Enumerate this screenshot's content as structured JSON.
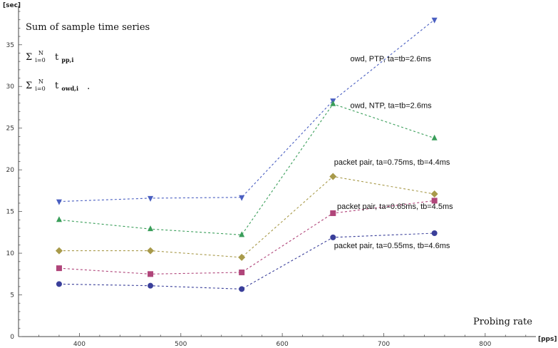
{
  "chart_data": {
    "type": "line",
    "title_lines": [
      "Sum of sample time series"
    ],
    "formula_1": {
      "sigma": "Σ",
      "sub": "i=0",
      "sup": "N",
      "term": "t",
      "term_sub": "pp,i"
    },
    "formula_2": {
      "sigma": "Σ",
      "sub": "i=0",
      "sup": "N",
      "term": "t",
      "term_sub": "owd,i"
    },
    "formula_2_suffix": ".",
    "ylabel": "[sec]",
    "xlabel_unit": "[pps]",
    "xlabel_text": "Probing rate",
    "xlim": [
      340,
      850
    ],
    "ylim": [
      0,
      39
    ],
    "xticks": [
      400,
      500,
      600,
      700,
      800
    ],
    "yticks": [
      0,
      5,
      10,
      15,
      20,
      25,
      30,
      35
    ],
    "x": [
      380,
      470,
      560,
      650,
      750
    ],
    "series": [
      {
        "name": "owd, PTP, ta=tb=2.6ms",
        "values": [
          16.2,
          16.6,
          16.7,
          28.3,
          38.0
        ],
        "color": "#4a5fc1",
        "marker": "triangle-down"
      },
      {
        "name": "owd, NTP, ta=tb=2.6ms",
        "values": [
          14.0,
          12.9,
          12.2,
          27.9,
          23.8
        ],
        "color": "#3a9e5a",
        "marker": "triangle-up"
      },
      {
        "name": "packet pair, ta=0.75ms, tb=4.4ms",
        "values": [
          10.3,
          10.3,
          9.5,
          19.2,
          17.1
        ],
        "color": "#a89a4a",
        "marker": "diamond"
      },
      {
        "name": "packet pair, ta=0.65ms, tb=4.5ms",
        "values": [
          8.2,
          7.5,
          7.7,
          14.8,
          16.3
        ],
        "color": "#b0457a",
        "marker": "square"
      },
      {
        "name": "packet pair, ta=0.55ms, tb=4.6ms",
        "values": [
          6.3,
          6.1,
          5.7,
          11.9,
          12.4
        ],
        "color": "#3a3f9a",
        "marker": "circle"
      }
    ],
    "grid": false
  }
}
